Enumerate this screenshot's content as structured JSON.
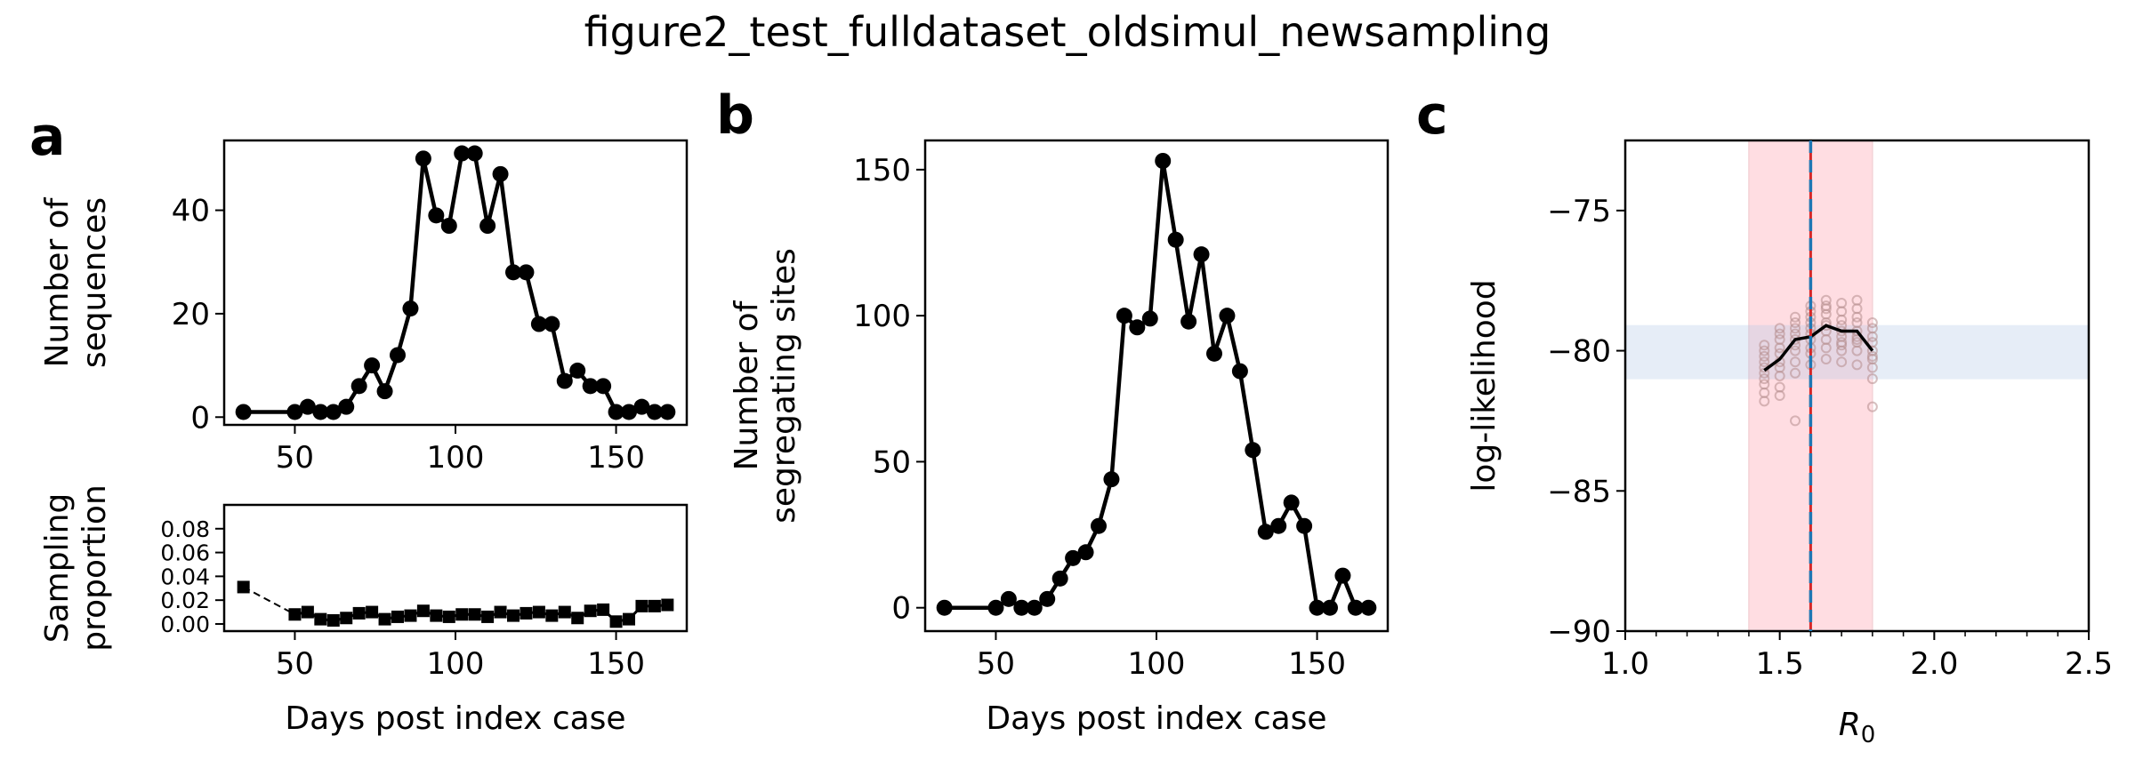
{
  "figure": {
    "title": "figure2_test_fulldataset_oldsimul_newsampling"
  },
  "colors": {
    "line": "#000000",
    "mle": "#1f77b4",
    "true_value": "#d62728",
    "ci_band": "#ffb6c1",
    "ll_band": "#aec7e8",
    "samples": "#b48c8c"
  },
  "chart_data": [
    {
      "id": "a_top",
      "panel": "a",
      "type": "line",
      "xlabel": "",
      "ylabel": [
        "Number of",
        "sequences"
      ],
      "xlim": [
        28,
        172
      ],
      "ylim": [
        -1.5,
        53.5
      ],
      "xticks": [
        50,
        100,
        150
      ],
      "yticks": [
        0,
        20,
        40
      ],
      "x": [
        34,
        50,
        54,
        58,
        62,
        66,
        70,
        74,
        78,
        82,
        86,
        90,
        94,
        98,
        102,
        106,
        110,
        114,
        118,
        122,
        126,
        130,
        134,
        138,
        142,
        146,
        150,
        154,
        158,
        162,
        166
      ],
      "y": [
        1,
        1,
        2,
        1,
        1,
        2,
        6,
        10,
        5,
        12,
        21,
        50,
        39,
        37,
        51,
        51,
        37,
        47,
        28,
        28,
        18,
        18,
        7,
        9,
        6,
        6,
        1,
        1,
        2,
        1,
        1
      ]
    },
    {
      "id": "a_bottom",
      "panel": "a",
      "type": "line",
      "xlabel": "Days post index case",
      "ylabel": [
        "Sampling",
        "proportion"
      ],
      "xlim": [
        28,
        172
      ],
      "ylim": [
        -0.006,
        0.1
      ],
      "xticks": [
        50,
        100,
        150
      ],
      "yticks": [
        0.0,
        0.02,
        0.04,
        0.06,
        0.08
      ],
      "ytick_labels": [
        "0.00",
        "0.02",
        "0.04",
        "0.06",
        "0.08"
      ],
      "x": [
        34,
        50,
        54,
        58,
        62,
        66,
        70,
        74,
        78,
        82,
        86,
        90,
        94,
        98,
        102,
        106,
        110,
        114,
        118,
        122,
        126,
        130,
        134,
        138,
        142,
        146,
        150,
        154,
        158,
        162,
        166
      ],
      "y": [
        0.031,
        0.008,
        0.01,
        0.004,
        0.003,
        0.005,
        0.009,
        0.01,
        0.004,
        0.006,
        0.007,
        0.011,
        0.007,
        0.006,
        0.008,
        0.008,
        0.006,
        0.01,
        0.007,
        0.009,
        0.01,
        0.007,
        0.01,
        0.005,
        0.011,
        0.012,
        0.002,
        0.004,
        0.015,
        0.015,
        0.016
      ],
      "dashed_until_index": 1
    },
    {
      "id": "b",
      "panel": "b",
      "type": "line",
      "xlabel": "Days post index case",
      "ylabel": [
        "Number of",
        "segregating sites"
      ],
      "xlim": [
        28,
        172
      ],
      "ylim": [
        -8,
        160
      ],
      "xticks": [
        50,
        100,
        150
      ],
      "yticks": [
        0,
        50,
        100,
        150
      ],
      "x": [
        34,
        50,
        54,
        58,
        62,
        66,
        70,
        74,
        78,
        82,
        86,
        90,
        94,
        98,
        102,
        106,
        110,
        114,
        118,
        122,
        126,
        130,
        134,
        138,
        142,
        146,
        150,
        154,
        158,
        162,
        166
      ],
      "y": [
        0,
        0,
        3,
        0,
        0,
        3,
        10,
        17,
        19,
        28,
        44,
        100,
        96,
        99,
        153,
        126,
        98,
        121,
        87,
        100,
        81,
        54,
        26,
        28,
        36,
        28,
        0,
        0,
        11,
        0,
        0
      ]
    },
    {
      "id": "c",
      "panel": "c",
      "type": "scatter",
      "xlabel": "R0",
      "ylabel": [
        "log-likelihood"
      ],
      "xlim": [
        1.0,
        2.5
      ],
      "ylim": [
        -90,
        -72.5
      ],
      "xticks": [
        1.0,
        1.5,
        2.0,
        2.5
      ],
      "xtick_labels": [
        "1.0",
        "1.5",
        "2.0",
        "2.5"
      ],
      "yticks": [
        -90,
        -85,
        -80,
        -75
      ],
      "ytick_labels": [
        "−90",
        "−85",
        "−80",
        "−75"
      ],
      "mle_R0": 1.6,
      "true_R0": 1.6,
      "ci_R0": [
        1.4,
        1.8
      ],
      "ll_band": [
        -81.0,
        -79.1
      ],
      "mean_x": [
        1.45,
        1.5,
        1.55,
        1.6,
        1.65,
        1.7,
        1.75,
        1.8
      ],
      "mean_y": [
        -80.7,
        -80.3,
        -79.6,
        -79.5,
        -79.1,
        -79.3,
        -79.3,
        -80.0
      ],
      "scatter_x": [
        1.45,
        1.45,
        1.45,
        1.45,
        1.45,
        1.45,
        1.45,
        1.45,
        1.45,
        1.45,
        1.5,
        1.5,
        1.5,
        1.5,
        1.5,
        1.5,
        1.5,
        1.5,
        1.5,
        1.5,
        1.55,
        1.55,
        1.55,
        1.55,
        1.55,
        1.55,
        1.55,
        1.55,
        1.55,
        1.55,
        1.6,
        1.6,
        1.6,
        1.6,
        1.6,
        1.6,
        1.6,
        1.6,
        1.6,
        1.6,
        1.65,
        1.65,
        1.65,
        1.65,
        1.65,
        1.65,
        1.65,
        1.65,
        1.65,
        1.65,
        1.7,
        1.7,
        1.7,
        1.7,
        1.7,
        1.7,
        1.7,
        1.7,
        1.7,
        1.7,
        1.75,
        1.75,
        1.75,
        1.75,
        1.75,
        1.75,
        1.75,
        1.75,
        1.75,
        1.75,
        1.8,
        1.8,
        1.8,
        1.8,
        1.8,
        1.8,
        1.8,
        1.8,
        1.8,
        1.8
      ],
      "scatter_y": [
        -81.8,
        -81.5,
        -81.2,
        -81.0,
        -80.8,
        -80.6,
        -80.4,
        -80.2,
        -80.0,
        -79.8,
        -81.6,
        -81.3,
        -80.9,
        -80.6,
        -80.4,
        -80.1,
        -79.9,
        -79.6,
        -79.4,
        -79.2,
        -82.5,
        -80.8,
        -80.4,
        -80.0,
        -79.8,
        -79.6,
        -79.4,
        -79.2,
        -79.0,
        -78.8,
        -80.5,
        -80.1,
        -79.9,
        -79.6,
        -79.4,
        -79.2,
        -79.0,
        -78.8,
        -78.6,
        -78.4,
        -80.3,
        -79.9,
        -79.6,
        -79.3,
        -79.0,
        -78.7,
        -78.5,
        -78.2,
        -78.4,
        -79.1,
        -80.4,
        -80.0,
        -79.7,
        -79.5,
        -79.3,
        -79.1,
        -78.9,
        -78.6,
        -78.3,
        -79.8,
        -80.5,
        -80.0,
        -79.7,
        -79.5,
        -79.3,
        -79.0,
        -78.8,
        -78.5,
        -78.2,
        -79.6,
        -82.0,
        -81.0,
        -80.6,
        -80.3,
        -80.0,
        -79.7,
        -79.5,
        -79.2,
        -79.0,
        -80.2
      ]
    }
  ]
}
